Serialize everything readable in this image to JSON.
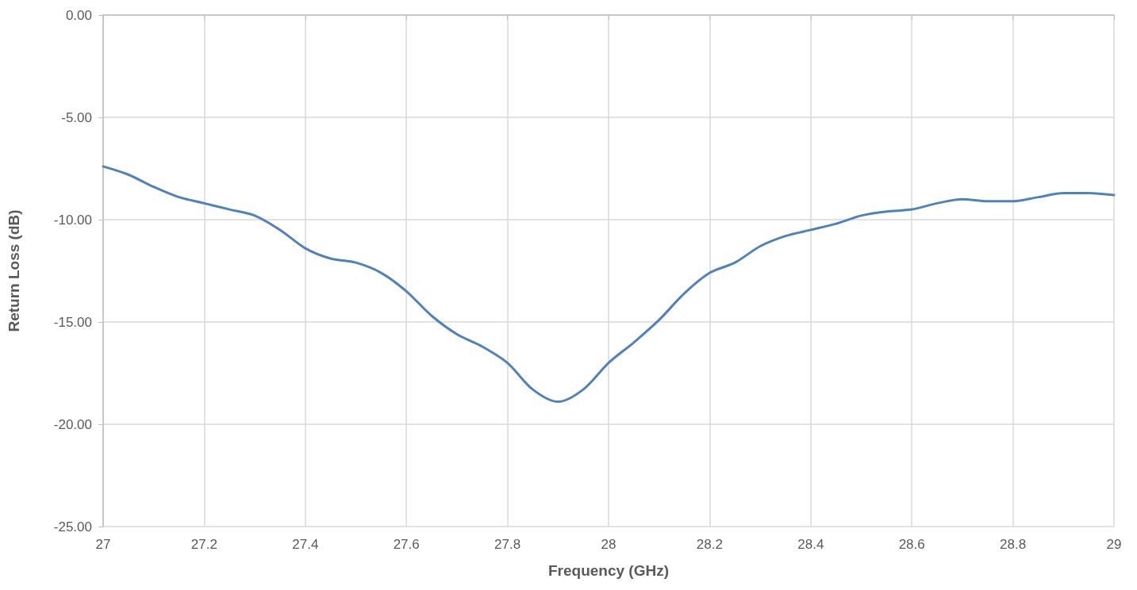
{
  "chart_data": {
    "type": "line",
    "xlabel": "Frequency (GHz)",
    "ylabel": "Return Loss (dB)",
    "x": [
      27.0,
      27.05,
      27.1,
      27.15,
      27.2,
      27.25,
      27.3,
      27.35,
      27.4,
      27.45,
      27.5,
      27.55,
      27.6,
      27.65,
      27.7,
      27.75,
      27.8,
      27.85,
      27.9,
      27.95,
      28.0,
      28.05,
      28.1,
      28.15,
      28.2,
      28.25,
      28.3,
      28.35,
      28.4,
      28.45,
      28.5,
      28.55,
      28.6,
      28.65,
      28.7,
      28.75,
      28.8,
      28.85,
      28.9,
      28.95,
      29.0
    ],
    "series": [
      {
        "color": "#4f81bd",
        "values": [
          -7.4,
          -7.8,
          -8.4,
          -8.9,
          -9.2,
          -9.5,
          -9.8,
          -10.5,
          -11.4,
          -11.9,
          -12.1,
          -12.6,
          -13.5,
          -14.7,
          -15.6,
          -16.2,
          -17.0,
          -18.3,
          -18.9,
          -18.3,
          -17.0,
          -16.0,
          -14.9,
          -13.6,
          -12.6,
          -12.1,
          -11.3,
          -10.8,
          -10.5,
          -10.2,
          -9.8,
          -9.6,
          -9.5,
          -9.2,
          -9.0,
          -9.1,
          -9.1,
          -8.9,
          -8.7,
          -8.7,
          -8.8
        ]
      }
    ],
    "xlim": [
      27,
      29
    ],
    "xticks": [
      27,
      27.2,
      27.4,
      27.6,
      27.8,
      28,
      28.2,
      28.4,
      28.6,
      28.8,
      29
    ],
    "ylim": [
      -25,
      0
    ],
    "yticks": [
      {
        "value": -25,
        "label": "-25.00"
      },
      {
        "value": -20,
        "label": "-20.00"
      },
      {
        "value": -15,
        "label": "-15.00"
      },
      {
        "value": -10,
        "label": "-10.00"
      },
      {
        "value": -5,
        "label": "-5.00"
      },
      {
        "value": 0,
        "label": "0.00"
      }
    ],
    "grid": true,
    "marker": "none",
    "line_style": "solid"
  }
}
